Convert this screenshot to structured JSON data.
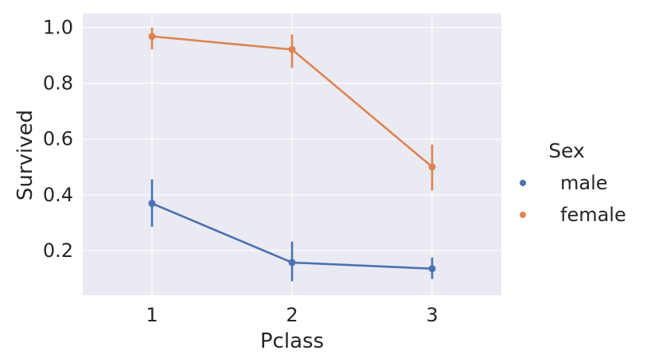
{
  "chart_data": {
    "type": "line",
    "title": "",
    "xlabel": "Pclass",
    "ylabel": "Survived",
    "categories": [
      "1",
      "2",
      "3"
    ],
    "ylim": [
      0.04,
      1.05
    ],
    "yticks": [
      0.2,
      0.4,
      0.6,
      0.8,
      1.0
    ],
    "ytick_labels": [
      "0.2",
      "0.4",
      "0.6",
      "0.8",
      "1.0"
    ],
    "grid": true,
    "legend": {
      "title": "Sex",
      "position": "right"
    },
    "series": [
      {
        "name": "male",
        "color": "#4c72b0",
        "values": [
          0.369,
          0.157,
          0.135
        ],
        "ci_low": [
          0.285,
          0.09,
          0.098
        ],
        "ci_high": [
          0.455,
          0.232,
          0.175
        ]
      },
      {
        "name": "female",
        "color": "#dd8452",
        "values": [
          0.968,
          0.921,
          0.5
        ],
        "ci_low": [
          0.922,
          0.855,
          0.415
        ],
        "ci_high": [
          1.0,
          0.975,
          0.58
        ]
      }
    ]
  }
}
